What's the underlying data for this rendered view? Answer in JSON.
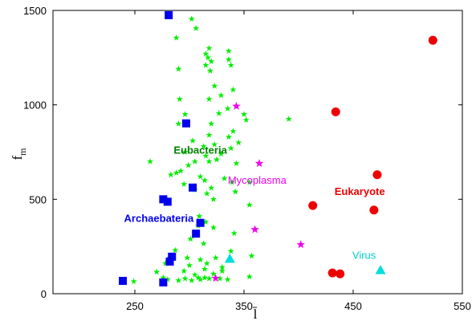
{
  "chart_data": {
    "type": "scatter",
    "title": "",
    "xlabel": "l̄",
    "ylabel": "f",
    "ylabel_subscript": "m",
    "xlim": [
      175,
      550
    ],
    "ylim": [
      0,
      1500
    ],
    "xticks": [
      250,
      350,
      450,
      550
    ],
    "yticks": [
      0,
      500,
      1000,
      1500
    ],
    "grid": false,
    "series": [
      {
        "name": "Eubacteria",
        "marker": "star",
        "color": "#00ee00",
        "points": [
          [
            291,
            1030
          ],
          [
            302,
            1455
          ],
          [
            288,
            1355
          ],
          [
            306,
            1405
          ],
          [
            290,
            1190
          ],
          [
            318,
            1300
          ],
          [
            336,
            1285
          ],
          [
            315,
            1270
          ],
          [
            317,
            1250
          ],
          [
            320,
            1230
          ],
          [
            315,
            1210
          ],
          [
            319,
            1180
          ],
          [
            336,
            1240
          ],
          [
            338,
            1210
          ],
          [
            323,
            1100
          ],
          [
            340,
            1080
          ],
          [
            318,
            1030
          ],
          [
            329,
            1050
          ],
          [
            335,
            980
          ],
          [
            296,
            950
          ],
          [
            290,
            900
          ],
          [
            327,
            955
          ],
          [
            350,
            950
          ],
          [
            320,
            900
          ],
          [
            340,
            860
          ],
          [
            345,
            800
          ],
          [
            318,
            840
          ],
          [
            336,
            830
          ],
          [
            352,
            920
          ],
          [
            391,
            925
          ],
          [
            303,
            810
          ],
          [
            313,
            780
          ],
          [
            323,
            790
          ],
          [
            296,
            750
          ],
          [
            315,
            730
          ],
          [
            338,
            770
          ],
          [
            329,
            740
          ],
          [
            264,
            700
          ],
          [
            299,
            680
          ],
          [
            305,
            700
          ],
          [
            318,
            700
          ],
          [
            325,
            710
          ],
          [
            343,
            690
          ],
          [
            292,
            650
          ],
          [
            283,
            630
          ],
          [
            288,
            640
          ],
          [
            310,
            620
          ],
          [
            320,
            560
          ],
          [
            332,
            610
          ],
          [
            295,
            580
          ],
          [
            314,
            600
          ],
          [
            339,
            590
          ],
          [
            305,
            550
          ],
          [
            316,
            530
          ],
          [
            322,
            500
          ],
          [
            342,
            540
          ],
          [
            355,
            470
          ],
          [
            355,
            590
          ],
          [
            309,
            410
          ],
          [
            315,
            380
          ],
          [
            308,
            360
          ],
          [
            322,
            350
          ],
          [
            341,
            320
          ],
          [
            301,
            290
          ],
          [
            313,
            265
          ],
          [
            338,
            225
          ],
          [
            357,
            200
          ],
          [
            287,
            230
          ],
          [
            278,
            160
          ],
          [
            282,
            190
          ],
          [
            298,
            190
          ],
          [
            310,
            180
          ],
          [
            316,
            160
          ],
          [
            324,
            190
          ],
          [
            300,
            150
          ],
          [
            295,
            120
          ],
          [
            314,
            130
          ],
          [
            330,
            140
          ],
          [
            305,
            100
          ],
          [
            308,
            85
          ],
          [
            322,
            105
          ],
          [
            270,
            115
          ],
          [
            276,
            85
          ],
          [
            280,
            75
          ],
          [
            290,
            70
          ],
          [
            296,
            80
          ],
          [
            302,
            70
          ],
          [
            310,
            75
          ],
          [
            314,
            85
          ],
          [
            318,
            80
          ],
          [
            328,
            80
          ],
          [
            335,
            75
          ],
          [
            355,
            90
          ],
          [
            249,
            65
          ],
          [
            276,
            70
          ],
          [
            330,
            120
          ]
        ]
      },
      {
        "name": "Archaebateria",
        "marker": "square",
        "color": "#0000ee",
        "points": [
          [
            281,
            1475
          ],
          [
            297,
            902
          ],
          [
            303,
            562
          ],
          [
            276,
            500
          ],
          [
            280,
            487
          ],
          [
            310,
            375
          ],
          [
            306,
            318
          ],
          [
            284,
            196
          ],
          [
            282,
            170
          ],
          [
            276,
            60
          ],
          [
            239,
            68
          ]
        ]
      },
      {
        "name": "Mycoplasma",
        "marker": "star",
        "color": "#ee00ee",
        "points": [
          [
            343,
            993
          ],
          [
            364,
            690
          ],
          [
            360,
            340
          ],
          [
            402,
            260
          ],
          [
            324,
            82
          ]
        ]
      },
      {
        "name": "Eukaryote",
        "marker": "circle",
        "color": "#ee0000",
        "points": [
          [
            523,
            1342
          ],
          [
            434,
            963
          ],
          [
            472,
            630
          ],
          [
            413,
            467
          ],
          [
            469,
            443
          ],
          [
            431,
            110
          ],
          [
            438,
            105
          ]
        ]
      },
      {
        "name": "Virus",
        "marker": "triangle",
        "color": "#00dddd",
        "points": [
          [
            337,
            185
          ],
          [
            475,
            125
          ]
        ]
      }
    ],
    "annotations": [
      {
        "text": "Eubacteria",
        "color": "#008000",
        "bold": true,
        "x": 310,
        "y": 742
      },
      {
        "text": "Archaebateria",
        "color": "#0000ee",
        "bold": true,
        "x": 272,
        "y": 380
      },
      {
        "text": "Mycoplasma",
        "color": "#ee00ee",
        "bold": false,
        "x": 362,
        "y": 583
      },
      {
        "text": "Eukaryote",
        "color": "#ee0000",
        "bold": true,
        "x": 456,
        "y": 522
      },
      {
        "text": "Virus",
        "color": "#00cccc",
        "bold": false,
        "x": 460,
        "y": 185
      }
    ]
  }
}
